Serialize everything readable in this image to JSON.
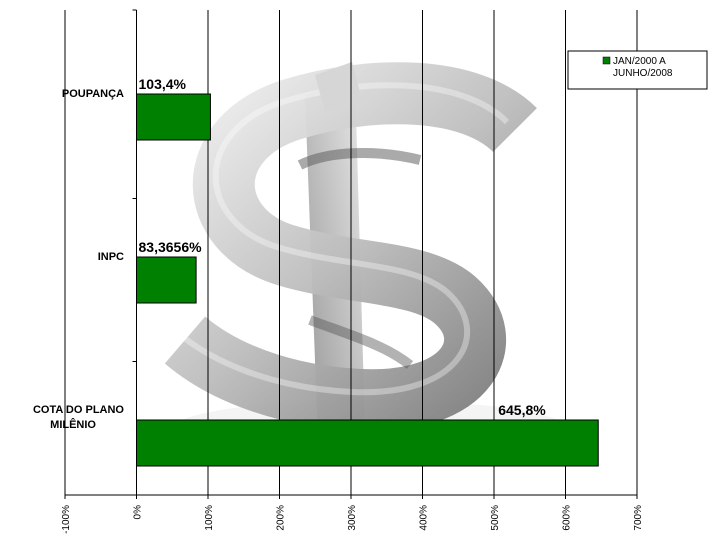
{
  "chart_data": {
    "type": "bar",
    "orientation": "horizontal",
    "title": "",
    "categories": [
      "POUPANÇA",
      "INPC",
      "COTA DO PLANO MILÊNIO"
    ],
    "series": [
      {
        "name": "JAN/2000 A JUNHO/2008",
        "values": [
          103.4,
          83.3656,
          645.8
        ],
        "labels": [
          "103,4%",
          "83,3656%",
          "645,8%"
        ],
        "color": "#008000"
      }
    ],
    "xlim": [
      -100,
      700
    ],
    "xticks": [
      -100,
      0,
      100,
      200,
      300,
      400,
      500,
      600,
      700
    ],
    "xtick_labels": [
      "-100%",
      "0%",
      "100%",
      "200%",
      "300%",
      "400%",
      "500%",
      "600%",
      "700%"
    ],
    "grid": true,
    "legend_position": "top-right",
    "background_image": "dollar-sign"
  }
}
